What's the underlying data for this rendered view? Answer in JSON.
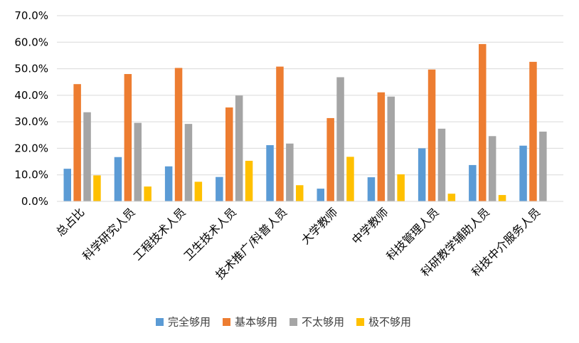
{
  "chart_data": {
    "type": "bar",
    "categories": [
      "总占比",
      "科学研究人员",
      "工程技术人员",
      "卫生技术人员",
      "技术推广/科普人员",
      "大学教师",
      "中学教师",
      "科技管理人员",
      "科研教学辅助人员",
      "科技中介服务人员"
    ],
    "series": [
      {
        "name": "完全够用",
        "color": "#5B9BD5",
        "values": [
          12.3,
          16.7,
          13.2,
          9.2,
          21.2,
          4.8,
          9.1,
          20.0,
          13.7,
          21.0
        ]
      },
      {
        "name": "基本够用",
        "color": "#ED7D31",
        "values": [
          44.2,
          48.0,
          50.3,
          35.4,
          50.8,
          31.4,
          41.1,
          49.7,
          59.3,
          52.6
        ]
      },
      {
        "name": "不太够用",
        "color": "#A5A5A5",
        "values": [
          33.6,
          29.6,
          29.2,
          39.9,
          21.8,
          46.8,
          39.5,
          27.4,
          24.6,
          26.3
        ]
      },
      {
        "name": "极不够用",
        "color": "#FFC000",
        "values": [
          9.8,
          5.6,
          7.4,
          15.3,
          6.1,
          16.8,
          10.2,
          2.9,
          2.4,
          0.0
        ]
      }
    ],
    "ylim": [
      0,
      70
    ],
    "yticks": [
      "0.0%",
      "10.0%",
      "20.0%",
      "30.0%",
      "40.0%",
      "50.0%",
      "60.0%",
      "70.0%"
    ],
    "grid": true,
    "legend_position": "bottom"
  }
}
